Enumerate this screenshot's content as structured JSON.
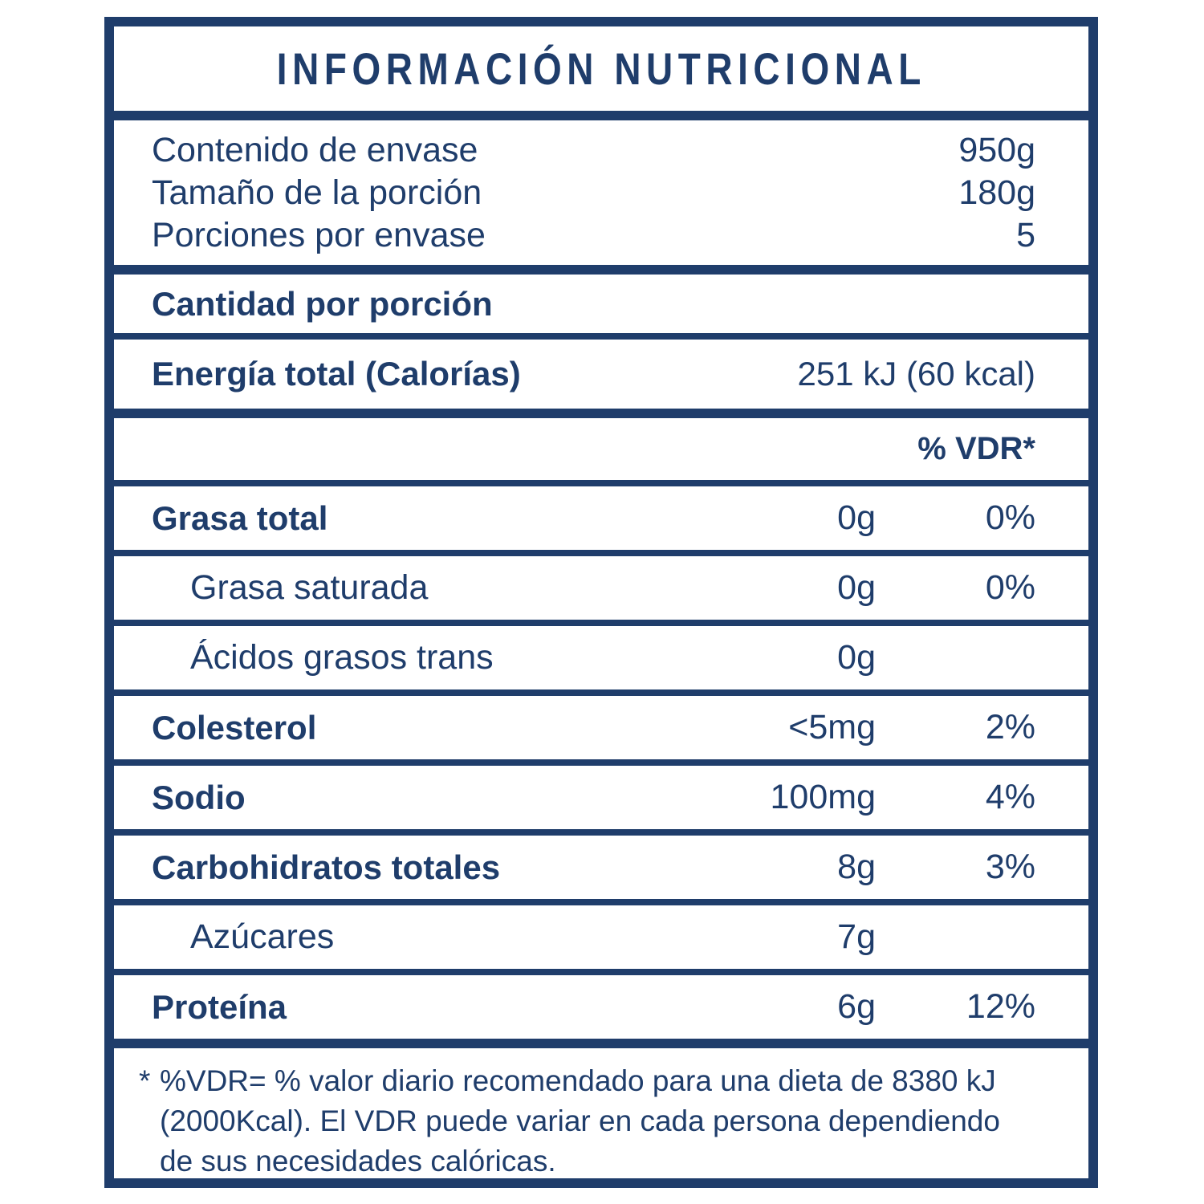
{
  "colors": {
    "navy": "#1f3d6b",
    "background": "#ffffff"
  },
  "title": "INFORMACIÓN NUTRICIONAL",
  "package_info": {
    "rows": [
      {
        "label": "Contenido de envase",
        "value": "950g"
      },
      {
        "label": "Tamaño de la porción",
        "value": "180g"
      },
      {
        "label": "Porciones por envase",
        "value": "5"
      }
    ]
  },
  "per_serving_header": "Cantidad por porción",
  "energy": {
    "label": "Energía total (Calorías)",
    "value": "251 kJ (60 kcal)"
  },
  "vdr_column_header": "% VDR*",
  "nutrients": [
    {
      "name": "Grasa total",
      "amount": "0g",
      "vdr": "0%"
    },
    {
      "name": "Grasa saturada",
      "amount": "0g",
      "vdr": "0%"
    },
    {
      "name": "Ácidos grasos trans",
      "amount": "0g",
      "vdr": ""
    },
    {
      "name": "Colesterol",
      "amount": "<5mg",
      "vdr": "2%"
    },
    {
      "name": "Sodio",
      "amount": "100mg",
      "vdr": "4%"
    },
    {
      "name": "Carbohidratos totales",
      "amount": "8g",
      "vdr": "3%"
    },
    {
      "name": "Azúcares",
      "amount": "7g",
      "vdr": ""
    },
    {
      "name": "Proteína",
      "amount": "6g",
      "vdr": "12%"
    }
  ],
  "footnote": {
    "marker": "*",
    "lines": [
      "%VDR= % valor diario recomendado para una dieta de 8380 kJ",
      "(2000Kcal). El VDR puede variar en cada persona dependiendo",
      "de sus necesidades calóricas."
    ]
  }
}
